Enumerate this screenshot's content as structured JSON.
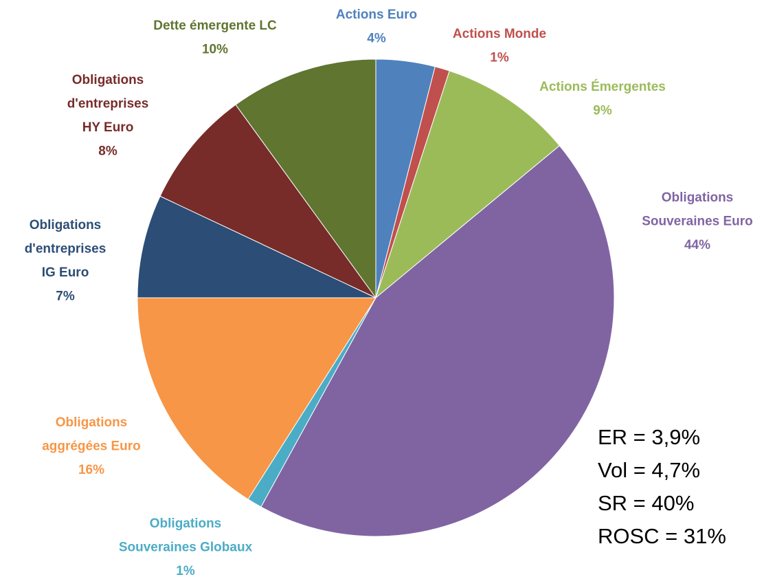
{
  "chart_data": {
    "type": "pie",
    "categories": [
      [
        "Actions Euro"
      ],
      [
        "Actions Monde"
      ],
      [
        "Actions Émergentes"
      ],
      [
        "Obligations",
        "Souveraines Euro"
      ],
      [
        "Obligations",
        "Souveraines Globaux"
      ],
      [
        "Obligations",
        "aggrégées Euro"
      ],
      [
        "Obligations",
        "d'entreprises",
        "IG Euro"
      ],
      [
        "Obligations",
        "d'entreprises",
        "HY Euro"
      ],
      [
        "Dette émergente LC"
      ]
    ],
    "values": [
      4,
      1,
      9,
      44,
      1,
      16,
      7,
      8,
      10
    ],
    "value_labels": [
      "4%",
      "1%",
      "9%",
      "44%",
      "1%",
      "16%",
      "7%",
      "8%",
      "10%"
    ],
    "colors": [
      "#4f81bd",
      "#c0504d",
      "#9bbb59",
      "#8064a2",
      "#4bacc6",
      "#f79646",
      "#2c4d75",
      "#772c2a",
      "#5f7530"
    ],
    "annotations": [
      "ER   = 3,9%",
      "Vol = 4,7%",
      "SR   = 40%",
      "ROSC = 31%"
    ]
  }
}
